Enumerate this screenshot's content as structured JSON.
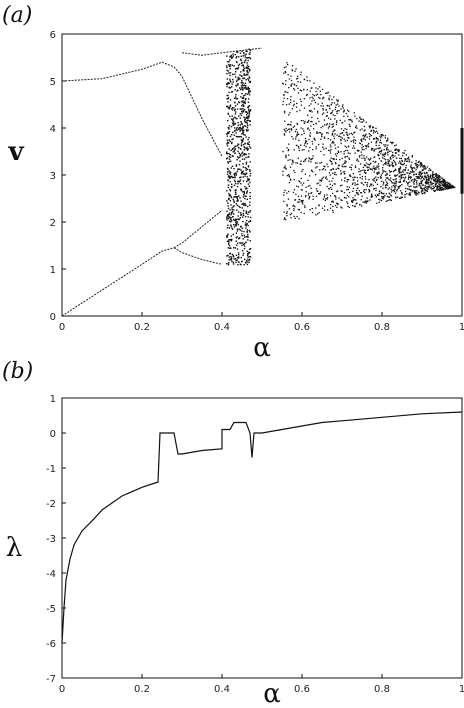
{
  "figure": {
    "panel_a_label": "(a)",
    "panel_b_label": "(b)"
  },
  "chart_data": [
    {
      "type": "scatter",
      "xlabel": "α",
      "ylabel": "v",
      "xlim": [
        0,
        1
      ],
      "ylim": [
        0,
        6
      ],
      "xticks": [
        0,
        0.2,
        0.4,
        0.6,
        0.8,
        1
      ],
      "xtick_labels": [
        "0",
        "0.2",
        "0.4",
        "0.6",
        "0.8",
        "1"
      ],
      "yticks": [
        0,
        1,
        2,
        3,
        4,
        5,
        6
      ],
      "ytick_labels": [
        "0",
        "1",
        "2",
        "3",
        "4",
        "5",
        "6"
      ],
      "grid": false,
      "branches": [
        {
          "x": [
            0,
            0.1,
            0.2,
            0.25,
            0.28
          ],
          "y": [
            5.0,
            5.05,
            5.25,
            5.4,
            5.3
          ]
        },
        {
          "x": [
            0,
            0.1,
            0.2,
            0.25,
            0.28
          ],
          "y": [
            0.0,
            0.55,
            1.1,
            1.38,
            1.45
          ]
        },
        {
          "x": [
            0.28,
            0.3,
            0.35,
            0.4
          ],
          "y": [
            5.3,
            5.1,
            4.2,
            3.4
          ]
        },
        {
          "x": [
            0.28,
            0.3,
            0.35,
            0.4
          ],
          "y": [
            1.45,
            1.55,
            1.9,
            2.25
          ]
        },
        {
          "x": [
            0.28,
            0.3,
            0.35,
            0.4
          ],
          "y": [
            1.45,
            1.35,
            1.2,
            1.1
          ]
        },
        {
          "x": [
            0.3,
            0.35,
            0.4,
            0.45,
            0.5
          ],
          "y": [
            5.6,
            5.55,
            5.6,
            5.65,
            5.7
          ]
        }
      ],
      "chaotic_bands": [
        {
          "x_start": 0.41,
          "x_end": 0.47,
          "y_low": 1.1,
          "y_high": 5.7
        },
        {
          "x_start": 0.55,
          "x_end": 0.98,
          "y_low_start": 2.0,
          "y_high_start": 5.5,
          "y_end": 2.75
        }
      ]
    },
    {
      "type": "line",
      "xlabel": "α",
      "ylabel": "λ",
      "xlim": [
        0,
        1
      ],
      "ylim": [
        -7,
        1
      ],
      "xticks": [
        0,
        0.2,
        0.4,
        0.6,
        0.8,
        1
      ],
      "xtick_labels": [
        "0",
        "0.2",
        "0.4",
        "0.6",
        "0.8",
        "1"
      ],
      "yticks": [
        -7,
        -6,
        -5,
        -4,
        -3,
        -2,
        -1,
        0,
        1
      ],
      "ytick_labels": [
        "-7",
        "-6",
        "-5",
        "-4",
        "-3",
        "-2",
        "-1",
        "0",
        "1"
      ],
      "grid": false,
      "series": [
        {
          "x": [
            0.0,
            0.005,
            0.01,
            0.02,
            0.03,
            0.05,
            0.08,
            0.1,
            0.15,
            0.2,
            0.24,
            0.245,
            0.25,
            0.27,
            0.28,
            0.29,
            0.3,
            0.35,
            0.4,
            0.4,
            0.42,
            0.43,
            0.45,
            0.46,
            0.47,
            0.475,
            0.48,
            0.49,
            0.5,
            0.55,
            0.6,
            0.65,
            0.7,
            0.8,
            0.9,
            1.0
          ],
          "y": [
            -6.0,
            -5.0,
            -4.2,
            -3.6,
            -3.2,
            -2.8,
            -2.45,
            -2.2,
            -1.8,
            -1.55,
            -1.4,
            0.0,
            0.0,
            0.0,
            0.0,
            -0.6,
            -0.6,
            -0.5,
            -0.45,
            0.1,
            0.1,
            0.3,
            0.3,
            0.3,
            0.0,
            -0.7,
            0.0,
            0.0,
            0.0,
            0.1,
            0.2,
            0.3,
            0.35,
            0.45,
            0.55,
            0.6
          ]
        }
      ]
    }
  ]
}
